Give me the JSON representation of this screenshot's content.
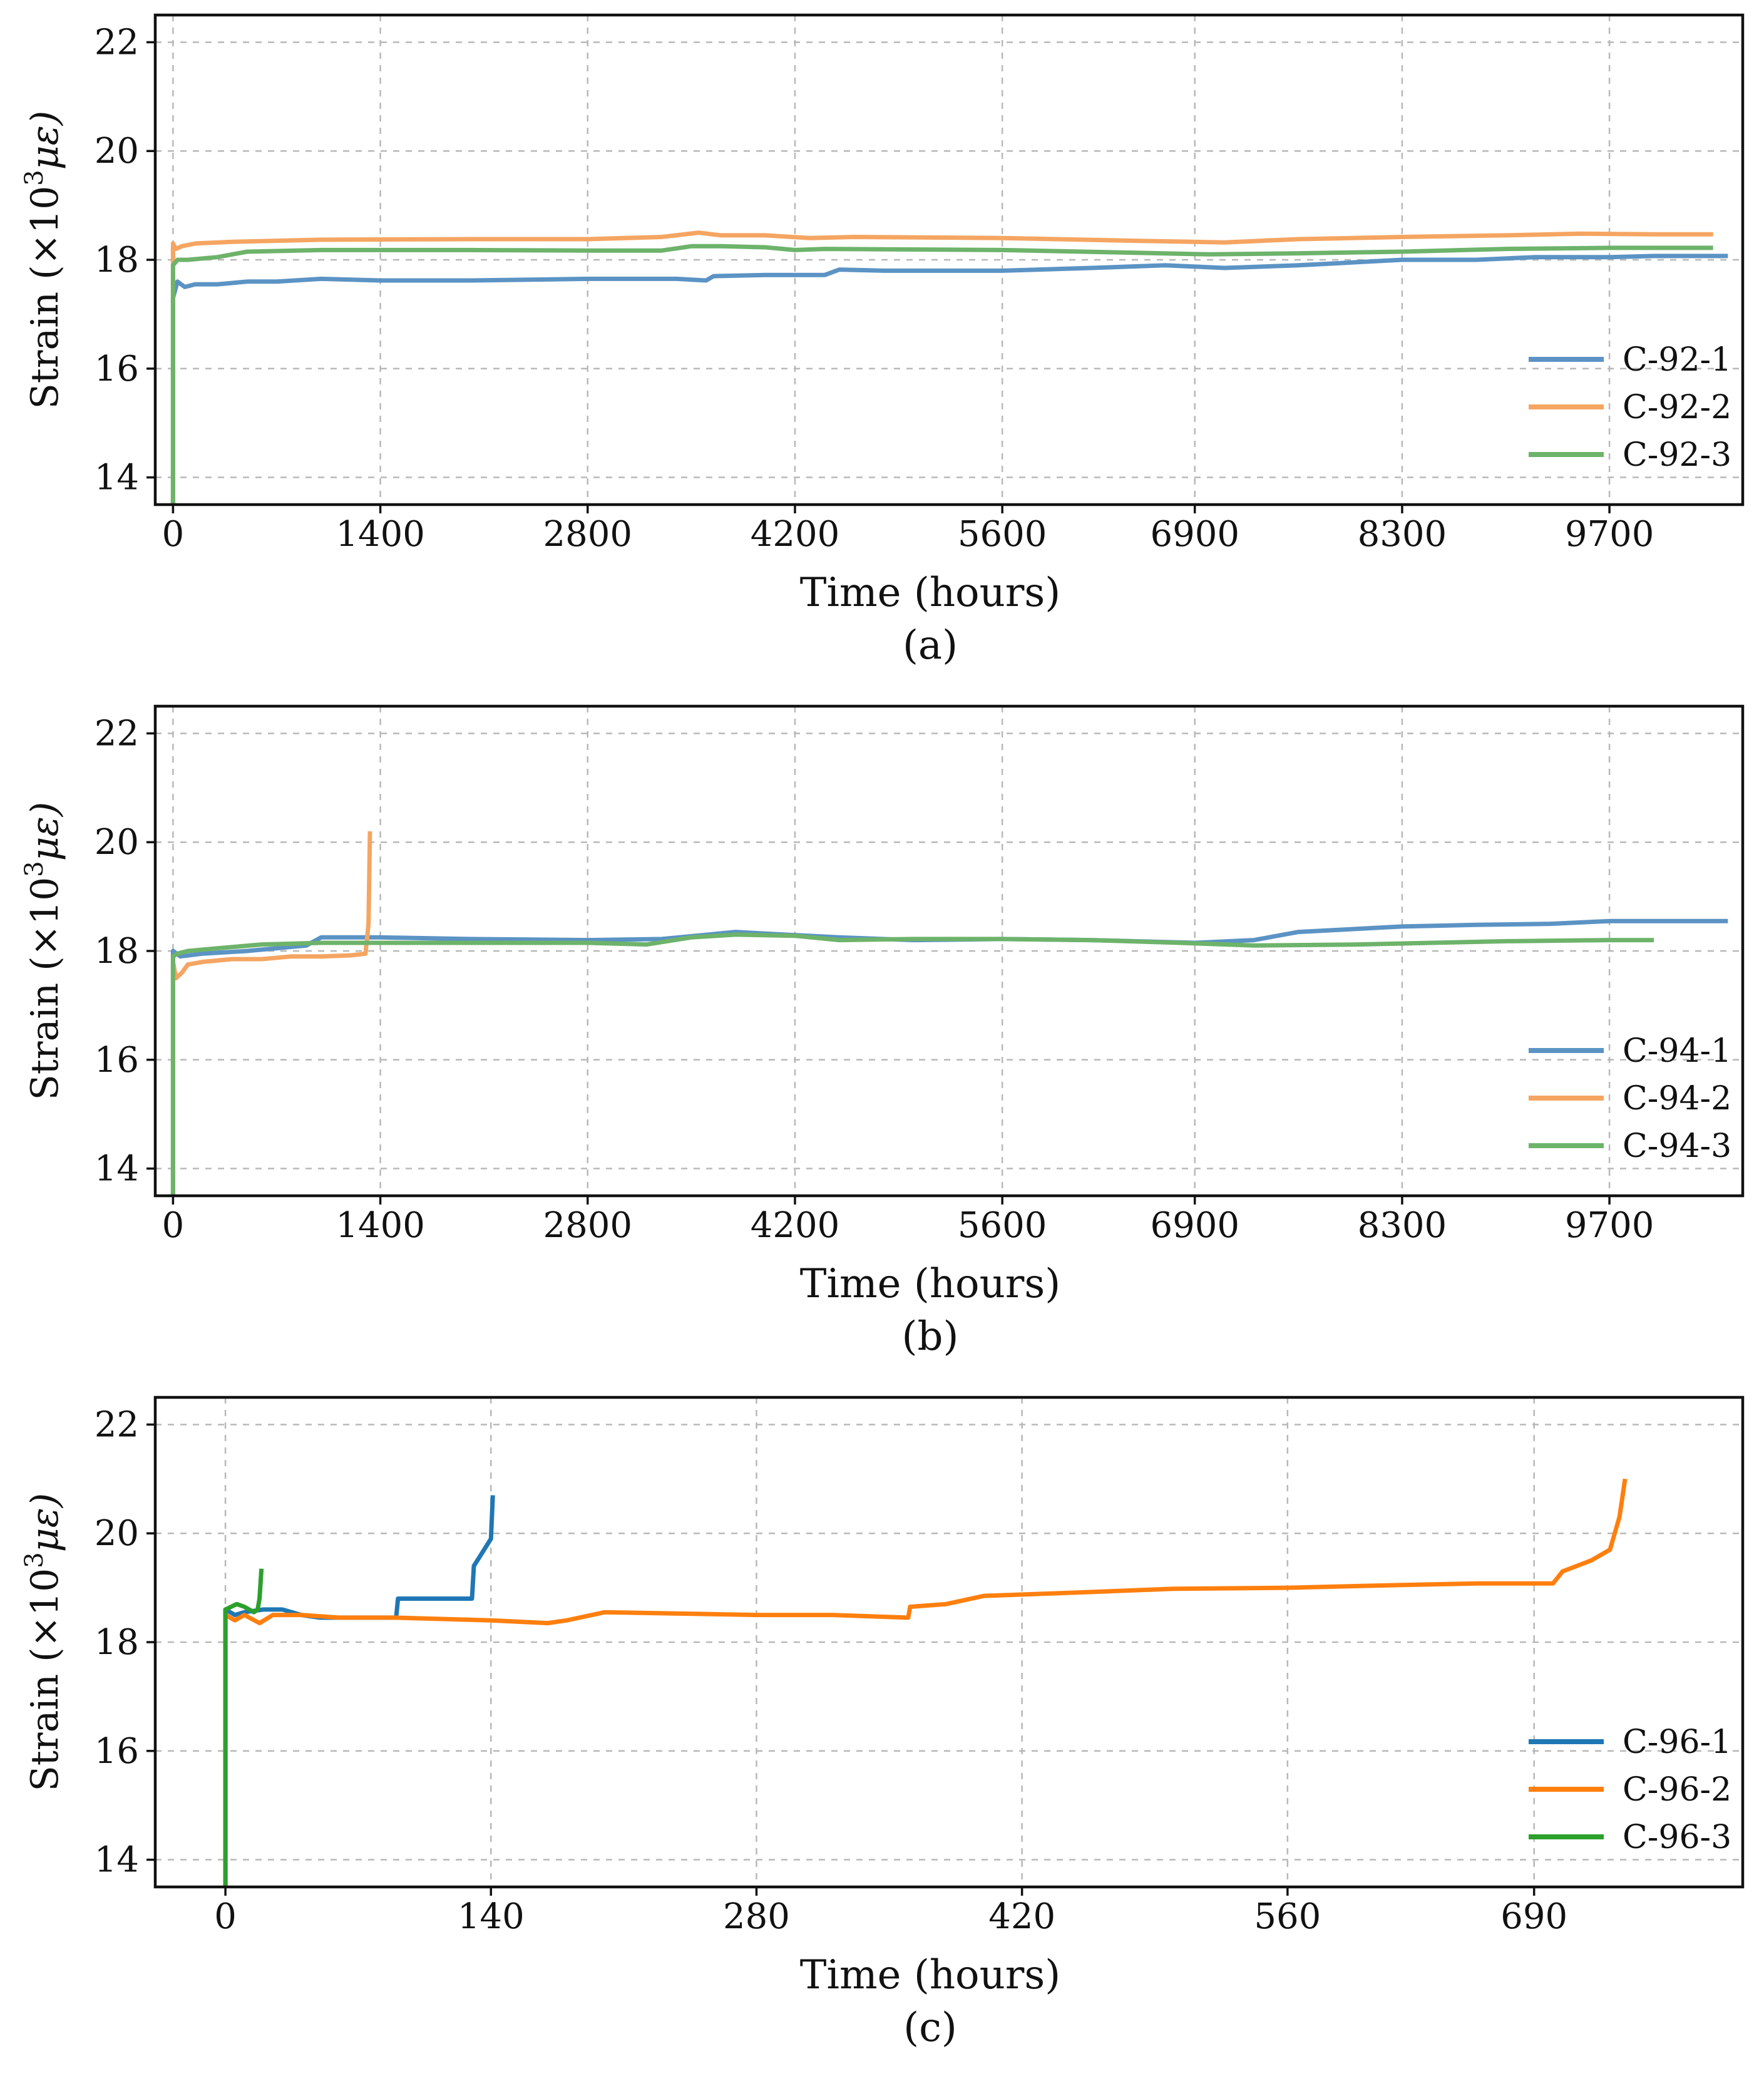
{
  "chart_data": [
    {
      "panel": "a",
      "caption": "(a)",
      "type": "line",
      "xlabel": "Time (hours)",
      "ylabel_prefix": "Strain (×10",
      "ylabel_sup": "3",
      "ylabel_unit": "με)",
      "xlim": [
        -120,
        10600
      ],
      "ylim": [
        13.5,
        22.5
      ],
      "grid": true,
      "legend_position": "lower-right",
      "x_ticks": [
        0,
        1400,
        2800,
        4200,
        5600,
        6900,
        8300,
        9700
      ],
      "x_tick_labels": [
        "0",
        "1400",
        "2800",
        "4200",
        "5600",
        "6900",
        "8300",
        "9700"
      ],
      "y_ticks": [
        14,
        16,
        18,
        20,
        22
      ],
      "y_tick_labels": [
        "14",
        "16",
        "18",
        "20",
        "22"
      ],
      "series": [
        {
          "name": "C-92-1",
          "color": "#5b93c4",
          "x": [
            0,
            0,
            30,
            80,
            150,
            300,
            500,
            700,
            1000,
            1400,
            2000,
            2800,
            3400,
            3600,
            3650,
            4000,
            4400,
            4500,
            4800,
            5600,
            6200,
            6700,
            7100,
            7600,
            8300,
            8800,
            9200,
            9700,
            10000,
            10500
          ],
          "y": [
            13.5,
            17.3,
            17.6,
            17.5,
            17.55,
            17.55,
            17.6,
            17.6,
            17.65,
            17.62,
            17.62,
            17.65,
            17.65,
            17.62,
            17.7,
            17.72,
            17.72,
            17.82,
            17.8,
            17.8,
            17.85,
            17.9,
            17.85,
            17.9,
            18.0,
            18.0,
            18.05,
            18.05,
            18.07,
            18.07
          ]
        },
        {
          "name": "C-92-2",
          "color": "#f5a562",
          "x": [
            0,
            0,
            20,
            60,
            150,
            400,
            1000,
            2000,
            2800,
            3300,
            3550,
            3700,
            4000,
            4300,
            4600,
            5600,
            6500,
            7100,
            7600,
            8300,
            9000,
            9500,
            10000,
            10400
          ],
          "y": [
            13.5,
            18.3,
            18.2,
            18.25,
            18.3,
            18.33,
            18.37,
            18.38,
            18.38,
            18.42,
            18.5,
            18.45,
            18.45,
            18.4,
            18.42,
            18.4,
            18.35,
            18.32,
            18.38,
            18.42,
            18.45,
            18.48,
            18.47,
            18.47
          ]
        },
        {
          "name": "C-92-3",
          "color": "#6db36a",
          "x": [
            0,
            0,
            30,
            100,
            300,
            500,
            1000,
            2000,
            2800,
            3300,
            3500,
            3700,
            4000,
            4200,
            4400,
            5600,
            6500,
            7000,
            7600,
            8300,
            9000,
            9700,
            10400
          ],
          "y": [
            13.5,
            17.9,
            18.0,
            18.0,
            18.05,
            18.15,
            18.18,
            18.18,
            18.17,
            18.17,
            18.25,
            18.25,
            18.23,
            18.18,
            18.2,
            18.18,
            18.13,
            18.1,
            18.12,
            18.15,
            18.2,
            18.22,
            18.22
          ]
        }
      ]
    },
    {
      "panel": "b",
      "caption": "(b)",
      "type": "line",
      "xlabel": "Time (hours)",
      "ylabel_prefix": "Strain (×10",
      "ylabel_sup": "3",
      "ylabel_unit": "με)",
      "xlim": [
        -120,
        10600
      ],
      "ylim": [
        13.5,
        22.5
      ],
      "grid": true,
      "legend_position": "lower-right",
      "x_ticks": [
        0,
        1400,
        2800,
        4200,
        5600,
        6900,
        8300,
        9700
      ],
      "x_tick_labels": [
        "0",
        "1400",
        "2800",
        "4200",
        "5600",
        "6900",
        "8300",
        "9700"
      ],
      "y_ticks": [
        14,
        16,
        18,
        20,
        22
      ],
      "y_tick_labels": [
        "14",
        "16",
        "18",
        "20",
        "22"
      ],
      "series": [
        {
          "name": "C-94-1",
          "color": "#5b93c4",
          "x": [
            0,
            0,
            50,
            200,
            500,
            900,
            1000,
            1400,
            2000,
            2800,
            3300,
            3800,
            4000,
            4500,
            5000,
            5600,
            6200,
            6900,
            7300,
            7600,
            8300,
            8800,
            9300,
            9700,
            10500
          ],
          "y": [
            13.5,
            18.0,
            17.9,
            17.95,
            18.0,
            18.1,
            18.25,
            18.25,
            18.22,
            18.2,
            18.22,
            18.35,
            18.32,
            18.25,
            18.2,
            18.22,
            18.2,
            18.15,
            18.2,
            18.35,
            18.45,
            18.48,
            18.5,
            18.55,
            18.55
          ]
        },
        {
          "name": "C-94-2",
          "color": "#f5a562",
          "x": [
            0,
            0,
            20,
            60,
            100,
            200,
            400,
            600,
            800,
            1000,
            1200,
            1300,
            1320,
            1330
          ],
          "y": [
            13.5,
            17.8,
            17.5,
            17.6,
            17.75,
            17.8,
            17.85,
            17.85,
            17.9,
            17.9,
            17.92,
            17.95,
            18.5,
            20.2
          ]
        },
        {
          "name": "C-94-3",
          "color": "#6db36a",
          "x": [
            0,
            0,
            30,
            100,
            300,
            600,
            1000,
            1400,
            2000,
            2800,
            3200,
            3500,
            3800,
            4200,
            4500,
            5000,
            5600,
            6200,
            6800,
            7300,
            8000,
            8500,
            9000,
            9700,
            10000
          ],
          "y": [
            13.5,
            17.9,
            17.95,
            18.0,
            18.05,
            18.12,
            18.15,
            18.15,
            18.15,
            18.15,
            18.12,
            18.25,
            18.3,
            18.28,
            18.2,
            18.22,
            18.22,
            18.2,
            18.15,
            18.1,
            18.12,
            18.15,
            18.18,
            18.2,
            18.2
          ]
        }
      ]
    },
    {
      "panel": "c",
      "caption": "(c)",
      "type": "line",
      "xlabel": "Time (hours)",
      "ylabel_prefix": "Strain (×10",
      "ylabel_sup": "3",
      "ylabel_unit": "με)",
      "xlim": [
        -37,
        800
      ],
      "ylim": [
        13.5,
        22.5
      ],
      "grid": true,
      "legend_position": "lower-right",
      "x_ticks": [
        0,
        140,
        280,
        420,
        560,
        690
      ],
      "x_tick_labels": [
        "0",
        "140",
        "280",
        "420",
        "560",
        "690"
      ],
      "y_ticks": [
        14,
        16,
        18,
        20,
        22
      ],
      "y_tick_labels": [
        "14",
        "16",
        "18",
        "20",
        "22"
      ],
      "series": [
        {
          "name": "C-96-1",
          "color": "#1f77b4",
          "x": [
            0,
            0,
            5,
            10,
            20,
            30,
            40,
            50,
            60,
            80,
            90,
            91,
            110,
            130,
            131,
            140,
            141
          ],
          "y": [
            13.5,
            18.6,
            18.5,
            18.55,
            18.6,
            18.6,
            18.5,
            18.45,
            18.45,
            18.45,
            18.45,
            18.8,
            18.8,
            18.8,
            19.4,
            19.9,
            20.7
          ]
        },
        {
          "name": "C-96-2",
          "color": "#ff7f0e",
          "x": [
            0,
            0,
            5,
            10,
            18,
            25,
            30,
            40,
            60,
            90,
            140,
            170,
            180,
            200,
            280,
            320,
            360,
            361,
            380,
            400,
            440,
            500,
            560,
            620,
            660,
            700,
            705,
            720,
            730,
            735,
            738
          ],
          "y": [
            13.5,
            18.5,
            18.4,
            18.5,
            18.35,
            18.5,
            18.5,
            18.5,
            18.45,
            18.45,
            18.4,
            18.35,
            18.4,
            18.55,
            18.5,
            18.5,
            18.45,
            18.65,
            18.7,
            18.85,
            18.9,
            18.98,
            19.0,
            19.05,
            19.08,
            19.08,
            19.3,
            19.5,
            19.7,
            20.3,
            21.0
          ]
        },
        {
          "name": "C-96-3",
          "color": "#2ca02c",
          "x": [
            0,
            0,
            3,
            6,
            10,
            15,
            17,
            18,
            19
          ],
          "y": [
            13.5,
            18.6,
            18.65,
            18.7,
            18.65,
            18.55,
            18.6,
            18.8,
            19.35
          ]
        }
      ]
    }
  ]
}
